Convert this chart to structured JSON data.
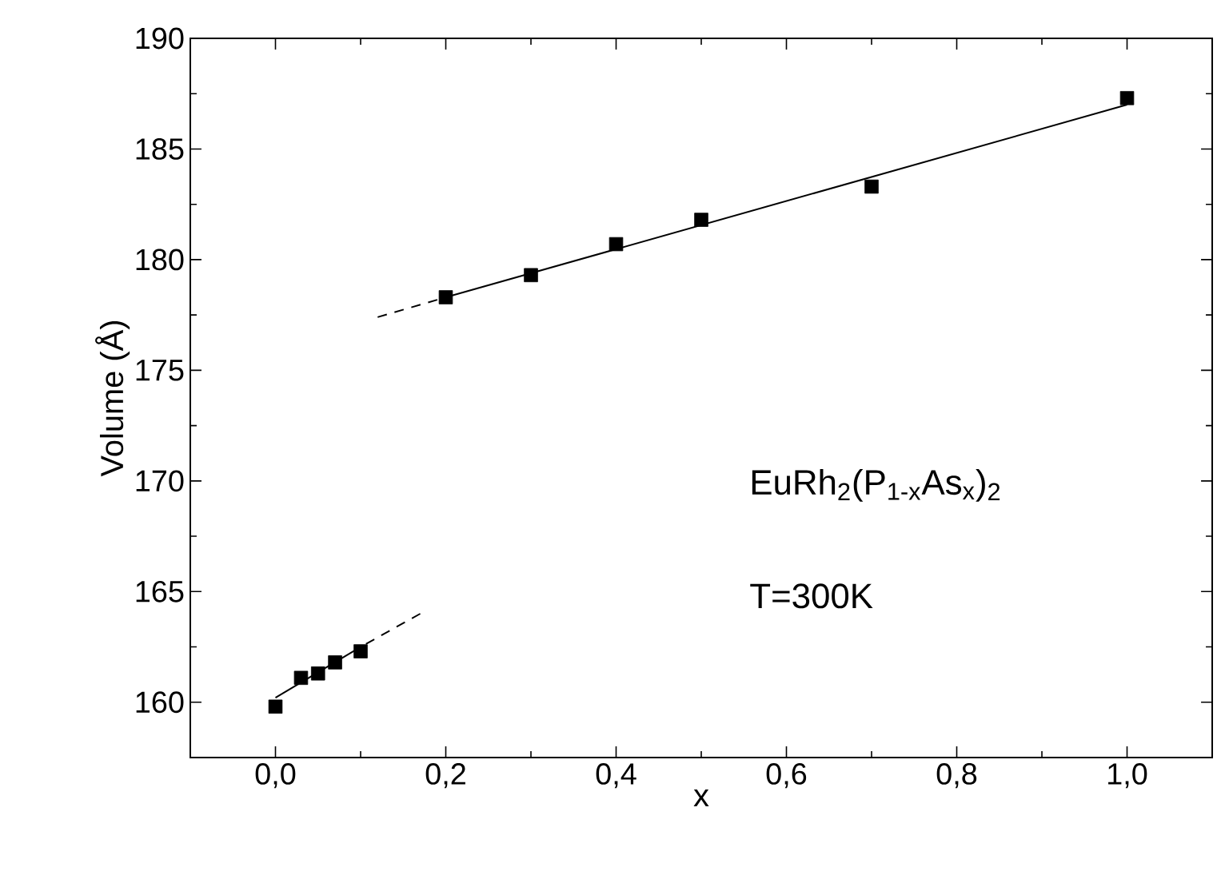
{
  "chart_data": {
    "type": "scatter",
    "xlabel": "x",
    "ylabel": "Volume (Å)",
    "xlim": [
      -0.1,
      1.1
    ],
    "ylim": [
      157.5,
      190
    ],
    "xticks": [
      {
        "value": 0,
        "label": "0,0"
      },
      {
        "value": 0.2,
        "label": "0,2"
      },
      {
        "value": 0.4,
        "label": "0,4"
      },
      {
        "value": 0.6,
        "label": "0,6"
      },
      {
        "value": 0.8,
        "label": "0,8"
      },
      {
        "value": 1.0,
        "label": "1,0"
      }
    ],
    "yticks": [
      160,
      165,
      170,
      175,
      180,
      185,
      190
    ],
    "series": [
      {
        "type": "scatter",
        "color": "#000000",
        "marker": "square",
        "x": [
          0,
          0.03,
          0.05,
          0.07,
          0.1,
          0.2,
          0.3,
          0.4,
          0.5,
          0.7,
          1.0
        ],
        "values": [
          159.8,
          161.1,
          161.3,
          161.8,
          162.3,
          178.3,
          179.3,
          180.7,
          181.8,
          183.3,
          187.3
        ]
      },
      {
        "type": "line",
        "color": "#000000",
        "marker": "none",
        "line_style": "solid",
        "x": [
          0.0,
          0.1
        ],
        "values": [
          160.2,
          162.5
        ]
      },
      {
        "type": "line",
        "color": "#000000",
        "marker": "none",
        "line_style": "dashed",
        "x": [
          0.17,
          0.1
        ],
        "values": [
          164.0,
          162.5
        ]
      },
      {
        "type": "line",
        "color": "#000000",
        "marker": "none",
        "line_style": "dashed",
        "x": [
          0.12,
          0.2
        ],
        "values": [
          177.4,
          178.3
        ]
      },
      {
        "type": "line",
        "color": "#000000",
        "marker": "none",
        "line_style": "solid",
        "x": [
          0.2,
          1.0
        ],
        "values": [
          178.3,
          187.0
        ]
      }
    ],
    "annotations": [
      "EuRh$_{2}$(P$_{1-x}$As$_{x}$)$_{2}$",
      "T=300K"
    ]
  }
}
